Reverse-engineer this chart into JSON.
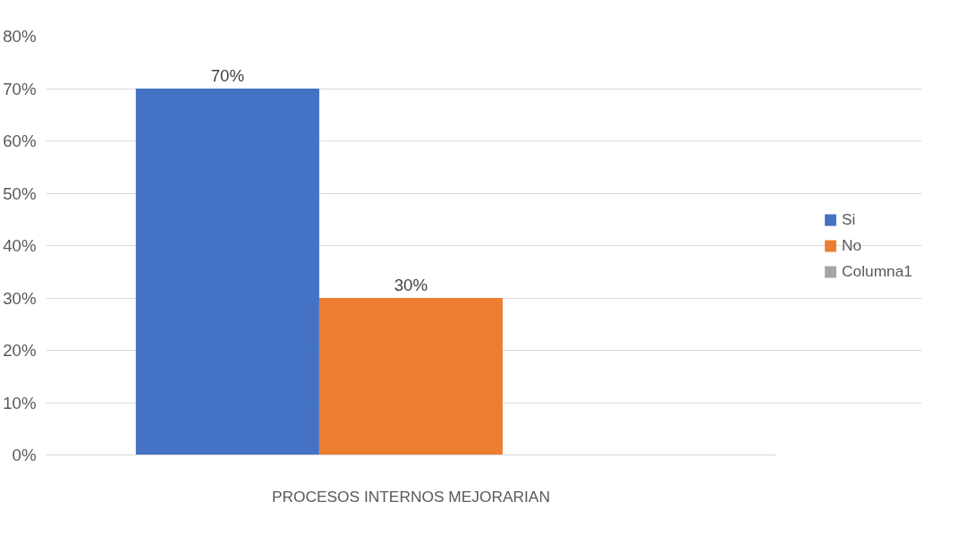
{
  "chart_data": {
    "type": "bar",
    "categories": [
      "PROCESOS INTERNOS MEJORARIAN"
    ],
    "series": [
      {
        "name": "Si",
        "color": "#4472c4",
        "values": [
          70
        ],
        "value_labels": [
          "70%"
        ]
      },
      {
        "name": "No",
        "color": "#ed7d31",
        "values": [
          30
        ],
        "value_labels": [
          "30%"
        ]
      },
      {
        "name": "Columna1",
        "color": "#a5a5a5",
        "values": [
          null
        ],
        "value_labels": [
          null
        ]
      }
    ],
    "ylim": [
      0,
      80
    ],
    "yticks": [
      {
        "value": 0,
        "label": "0%"
      },
      {
        "value": 10,
        "label": "10%"
      },
      {
        "value": 20,
        "label": "20%"
      },
      {
        "value": 30,
        "label": "30%"
      },
      {
        "value": 40,
        "label": "40%"
      },
      {
        "value": 50,
        "label": "50%"
      },
      {
        "value": 60,
        "label": "60%"
      },
      {
        "value": 70,
        "label": "70%"
      },
      {
        "value": 80,
        "label": "80%"
      }
    ],
    "grid": "y",
    "legend": "right"
  }
}
